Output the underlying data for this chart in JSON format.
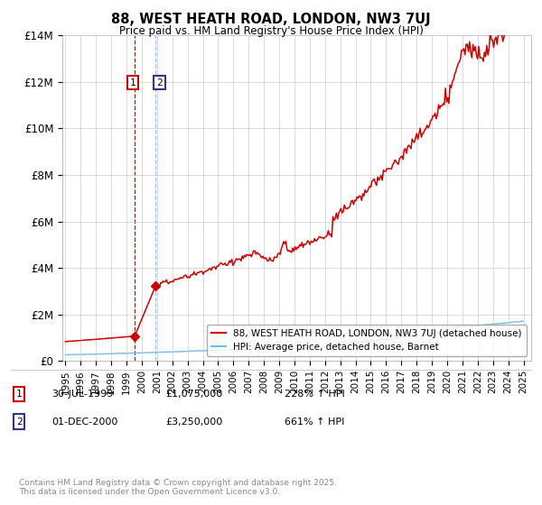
{
  "title": "88, WEST HEATH ROAD, LONDON, NW3 7UJ",
  "subtitle": "Price paid vs. HM Land Registry's House Price Index (HPI)",
  "ylim": [
    0,
    14000000
  ],
  "yticks": [
    0,
    2000000,
    4000000,
    6000000,
    8000000,
    10000000,
    12000000,
    14000000
  ],
  "ytick_labels": [
    "£0",
    "£2M",
    "£4M",
    "£6M",
    "£8M",
    "£10M",
    "£12M",
    "£14M"
  ],
  "xtick_years": [
    1995,
    1996,
    1997,
    1998,
    1999,
    2000,
    2001,
    2002,
    2003,
    2004,
    2005,
    2006,
    2007,
    2008,
    2009,
    2010,
    2011,
    2012,
    2013,
    2014,
    2015,
    2016,
    2017,
    2018,
    2019,
    2020,
    2021,
    2022,
    2023,
    2024,
    2025
  ],
  "sale1_year": 1999.542,
  "sale1_price": 1075000,
  "sale1_date": "30-JUL-1999",
  "sale1_hpi_pct": "228%",
  "sale2_year": 2000.917,
  "sale2_price": 3250000,
  "sale2_date": "01-DEC-2000",
  "sale2_hpi_pct": "661%",
  "legend_label1": "88, WEST HEATH ROAD, LONDON, NW3 7UJ (detached house)",
  "legend_label2": "HPI: Average price, detached house, Barnet",
  "footer": "Contains HM Land Registry data © Crown copyright and database right 2025.\nThis data is licensed under the Open Government Licence v3.0.",
  "hpi_color": "#7ab8e0",
  "price_color": "#cc0000",
  "bg_color": "#ffffff",
  "grid_color": "#cccccc",
  "vline1_color": "#cc0000",
  "vline2_color": "#aabbdd",
  "vshade2_color": "#ddeeff",
  "annotation1_color": "#cc0000",
  "annotation2_color": "#333388",
  "xlim_left": 1994.8,
  "xlim_right": 2025.5
}
